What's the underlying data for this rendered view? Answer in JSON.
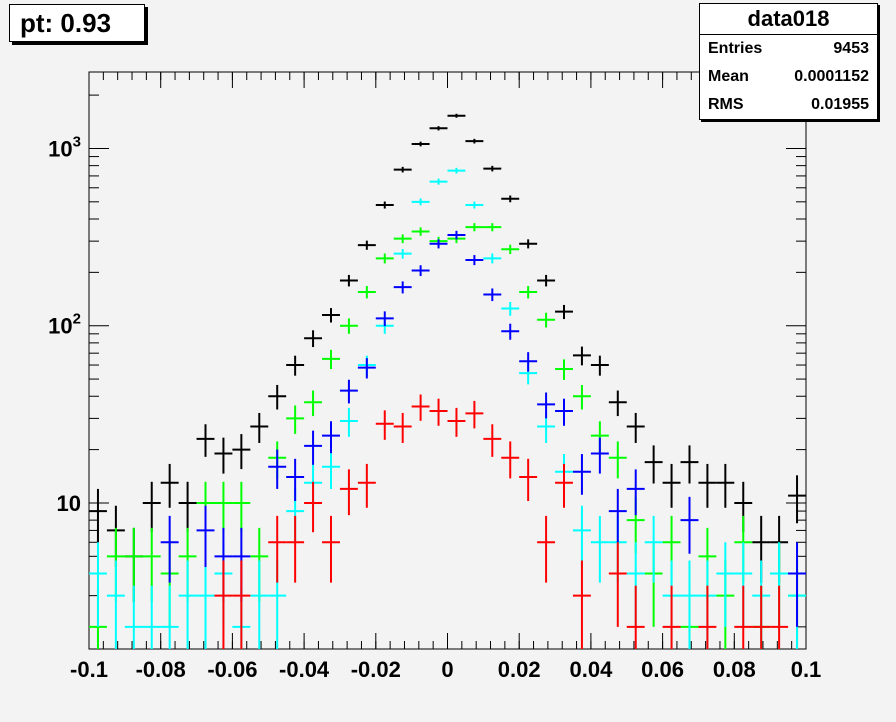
{
  "title_box": {
    "text": "pt: 0.93"
  },
  "stats_box": {
    "name": "data018",
    "rows": [
      {
        "label": "Entries",
        "value": "9453"
      },
      {
        "label": "Mean",
        "value": "0.0001152"
      },
      {
        "label": "RMS",
        "value": "0.01955"
      }
    ]
  },
  "chart_data": {
    "type": "scatter",
    "title": "",
    "xlabel": "",
    "ylabel": "",
    "xlim": [
      -0.1,
      0.1
    ],
    "ylim": [
      1.5,
      2700
    ],
    "yscale": "log",
    "bin_width": 0.005,
    "x_ticks": [
      -0.1,
      -0.08,
      -0.06,
      -0.04,
      -0.02,
      0,
      0.02,
      0.04,
      0.06,
      0.08,
      0.1
    ],
    "x_tick_labels": [
      "-0.1",
      "-0.08",
      "-0.06",
      "-0.04",
      "-0.02",
      "0",
      "0.02",
      "0.04",
      "0.06",
      "0.08",
      "0.1"
    ],
    "y_ticks": [
      10,
      100,
      1000
    ],
    "y_tick_labels": [
      "10",
      "10",
      "10"
    ],
    "y_tick_exponents": [
      "",
      "2",
      "3"
    ],
    "series": [
      {
        "color": "#000000",
        "points": [
          {
            "x": -0.0975,
            "y": 9
          },
          {
            "x": -0.0925,
            "y": 7
          },
          {
            "x": -0.0875,
            "y": 5
          },
          {
            "x": -0.0825,
            "y": 10
          },
          {
            "x": -0.0775,
            "y": 13
          },
          {
            "x": -0.0725,
            "y": 10
          },
          {
            "x": -0.0675,
            "y": 23
          },
          {
            "x": -0.0625,
            "y": 19
          },
          {
            "x": -0.0575,
            "y": 20
          },
          {
            "x": -0.0525,
            "y": 27
          },
          {
            "x": -0.0475,
            "y": 40
          },
          {
            "x": -0.0425,
            "y": 60
          },
          {
            "x": -0.0375,
            "y": 85
          },
          {
            "x": -0.0325,
            "y": 115
          },
          {
            "x": -0.0275,
            "y": 180
          },
          {
            "x": -0.0225,
            "y": 285
          },
          {
            "x": -0.0175,
            "y": 480
          },
          {
            "x": -0.0125,
            "y": 760
          },
          {
            "x": -0.0075,
            "y": 1060
          },
          {
            "x": -0.0025,
            "y": 1300
          },
          {
            "x": 0.0025,
            "y": 1530
          },
          {
            "x": 0.0075,
            "y": 1100
          },
          {
            "x": 0.0125,
            "y": 770
          },
          {
            "x": 0.0175,
            "y": 520
          },
          {
            "x": 0.0225,
            "y": 290
          },
          {
            "x": 0.0275,
            "y": 180
          },
          {
            "x": 0.0325,
            "y": 120
          },
          {
            "x": 0.0375,
            "y": 68
          },
          {
            "x": 0.0425,
            "y": 60
          },
          {
            "x": 0.0475,
            "y": 37
          },
          {
            "x": 0.0525,
            "y": 27
          },
          {
            "x": 0.0575,
            "y": 17
          },
          {
            "x": 0.0625,
            "y": 13
          },
          {
            "x": 0.0675,
            "y": 17
          },
          {
            "x": 0.0725,
            "y": 13
          },
          {
            "x": 0.0775,
            "y": 13
          },
          {
            "x": 0.0825,
            "y": 10
          },
          {
            "x": 0.0875,
            "y": 6
          },
          {
            "x": 0.0925,
            "y": 6
          },
          {
            "x": 0.0975,
            "y": 11
          }
        ]
      },
      {
        "color": "#00ff00",
        "points": [
          {
            "x": -0.0975,
            "y": 2
          },
          {
            "x": -0.0925,
            "y": 5
          },
          {
            "x": -0.0875,
            "y": 5
          },
          {
            "x": -0.0825,
            "y": 5
          },
          {
            "x": -0.0775,
            "y": 4
          },
          {
            "x": -0.0725,
            "y": 5
          },
          {
            "x": -0.0675,
            "y": 10
          },
          {
            "x": -0.0625,
            "y": 10
          },
          {
            "x": -0.0575,
            "y": 10
          },
          {
            "x": -0.0525,
            "y": 5
          },
          {
            "x": -0.0475,
            "y": 18
          },
          {
            "x": -0.0425,
            "y": 30
          },
          {
            "x": -0.0375,
            "y": 37
          },
          {
            "x": -0.0325,
            "y": 65
          },
          {
            "x": -0.0275,
            "y": 100
          },
          {
            "x": -0.0225,
            "y": 155
          },
          {
            "x": -0.0175,
            "y": 240
          },
          {
            "x": -0.0125,
            "y": 310
          },
          {
            "x": -0.0075,
            "y": 340
          },
          {
            "x": -0.0025,
            "y": 300
          },
          {
            "x": 0.0025,
            "y": 310
          },
          {
            "x": 0.0075,
            "y": 360
          },
          {
            "x": 0.0125,
            "y": 360
          },
          {
            "x": 0.0175,
            "y": 270
          },
          {
            "x": 0.0225,
            "y": 155
          },
          {
            "x": 0.0275,
            "y": 108
          },
          {
            "x": 0.0325,
            "y": 57
          },
          {
            "x": 0.0375,
            "y": 40
          },
          {
            "x": 0.0425,
            "y": 24
          },
          {
            "x": 0.0475,
            "y": 18
          },
          {
            "x": 0.0525,
            "y": 8
          },
          {
            "x": 0.0575,
            "y": 4
          },
          {
            "x": 0.0625,
            "y": 6
          },
          {
            "x": 0.0675,
            "y": 2
          },
          {
            "x": 0.0725,
            "y": 5
          },
          {
            "x": 0.0775,
            "y": 3
          },
          {
            "x": 0.0825,
            "y": 6
          },
          {
            "x": 0.0875,
            "y": 2
          },
          {
            "x": 0.0925,
            "y": 4
          },
          {
            "x": 0.0975,
            "y": 3
          }
        ]
      },
      {
        "color": "#00ffff",
        "points": [
          {
            "x": -0.0975,
            "y": 4
          },
          {
            "x": -0.0925,
            "y": 3
          },
          {
            "x": -0.0875,
            "y": 2
          },
          {
            "x": -0.0825,
            "y": 2
          },
          {
            "x": -0.0775,
            "y": 2
          },
          {
            "x": -0.0725,
            "y": 3
          },
          {
            "x": -0.0675,
            "y": 3
          },
          {
            "x": -0.0625,
            "y": 4
          },
          {
            "x": -0.0575,
            "y": 2
          },
          {
            "x": -0.0525,
            "y": 3
          },
          {
            "x": -0.0475,
            "y": 3
          },
          {
            "x": -0.0425,
            "y": 9
          },
          {
            "x": -0.0375,
            "y": 13
          },
          {
            "x": -0.0325,
            "y": 16
          },
          {
            "x": -0.0275,
            "y": 29
          },
          {
            "x": -0.0225,
            "y": 60
          },
          {
            "x": -0.0175,
            "y": 100
          },
          {
            "x": -0.0125,
            "y": 255
          },
          {
            "x": -0.0075,
            "y": 500
          },
          {
            "x": -0.0025,
            "y": 650
          },
          {
            "x": 0.0025,
            "y": 750
          },
          {
            "x": 0.0075,
            "y": 480
          },
          {
            "x": 0.0125,
            "y": 240
          },
          {
            "x": 0.0175,
            "y": 125
          },
          {
            "x": 0.0225,
            "y": 54
          },
          {
            "x": 0.0275,
            "y": 27
          },
          {
            "x": 0.0325,
            "y": 15
          },
          {
            "x": 0.0375,
            "y": 7
          },
          {
            "x": 0.0425,
            "y": 6
          },
          {
            "x": 0.0475,
            "y": 6
          },
          {
            "x": 0.0525,
            "y": 4
          },
          {
            "x": 0.0575,
            "y": 6
          },
          {
            "x": 0.0625,
            "y": 3
          },
          {
            "x": 0.0675,
            "y": 3
          },
          {
            "x": 0.0725,
            "y": 3
          },
          {
            "x": 0.0775,
            "y": 4
          },
          {
            "x": 0.0825,
            "y": 4
          },
          {
            "x": 0.0875,
            "y": 3
          },
          {
            "x": 0.0925,
            "y": 4
          },
          {
            "x": 0.0975,
            "y": 3
          }
        ]
      },
      {
        "color": "#0000ff",
        "points": [
          {
            "x": -0.0775,
            "y": 6
          },
          {
            "x": -0.0675,
            "y": 7
          },
          {
            "x": -0.0625,
            "y": 5
          },
          {
            "x": -0.0575,
            "y": 5
          },
          {
            "x": -0.0475,
            "y": 16
          },
          {
            "x": -0.0425,
            "y": 14
          },
          {
            "x": -0.0375,
            "y": 21
          },
          {
            "x": -0.0325,
            "y": 24
          },
          {
            "x": -0.0275,
            "y": 43
          },
          {
            "x": -0.0225,
            "y": 58
          },
          {
            "x": -0.0175,
            "y": 110
          },
          {
            "x": -0.0125,
            "y": 165
          },
          {
            "x": -0.0075,
            "y": 205
          },
          {
            "x": -0.0025,
            "y": 290
          },
          {
            "x": 0.0025,
            "y": 325
          },
          {
            "x": 0.0075,
            "y": 235
          },
          {
            "x": 0.0125,
            "y": 150
          },
          {
            "x": 0.0175,
            "y": 93
          },
          {
            "x": 0.0225,
            "y": 63
          },
          {
            "x": 0.0275,
            "y": 36
          },
          {
            "x": 0.0325,
            "y": 33
          },
          {
            "x": 0.0375,
            "y": 15
          },
          {
            "x": 0.0425,
            "y": 19
          },
          {
            "x": 0.0475,
            "y": 9
          },
          {
            "x": 0.0525,
            "y": 12
          },
          {
            "x": 0.0675,
            "y": 8
          },
          {
            "x": 0.0975,
            "y": 4
          }
        ]
      },
      {
        "color": "#ff0000",
        "points": [
          {
            "x": -0.0625,
            "y": 3
          },
          {
            "x": -0.0575,
            "y": 3
          },
          {
            "x": -0.0475,
            "y": 6
          },
          {
            "x": -0.0425,
            "y": 6
          },
          {
            "x": -0.0375,
            "y": 10
          },
          {
            "x": -0.0325,
            "y": 6
          },
          {
            "x": -0.0275,
            "y": 12
          },
          {
            "x": -0.0225,
            "y": 13
          },
          {
            "x": -0.0175,
            "y": 28
          },
          {
            "x": -0.0125,
            "y": 27
          },
          {
            "x": -0.0075,
            "y": 35
          },
          {
            "x": -0.0025,
            "y": 33
          },
          {
            "x": 0.0025,
            "y": 29
          },
          {
            "x": 0.0075,
            "y": 32
          },
          {
            "x": 0.0125,
            "y": 23
          },
          {
            "x": 0.0175,
            "y": 18
          },
          {
            "x": 0.0225,
            "y": 14
          },
          {
            "x": 0.0275,
            "y": 6
          },
          {
            "x": 0.0325,
            "y": 13
          },
          {
            "x": 0.0375,
            "y": 3
          },
          {
            "x": 0.0475,
            "y": 4
          },
          {
            "x": 0.0525,
            "y": 2
          },
          {
            "x": 0.0625,
            "y": 2
          },
          {
            "x": 0.0725,
            "y": 2
          },
          {
            "x": 0.0825,
            "y": 2
          },
          {
            "x": 0.0875,
            "y": 2
          },
          {
            "x": 0.0925,
            "y": 2
          }
        ]
      }
    ]
  }
}
